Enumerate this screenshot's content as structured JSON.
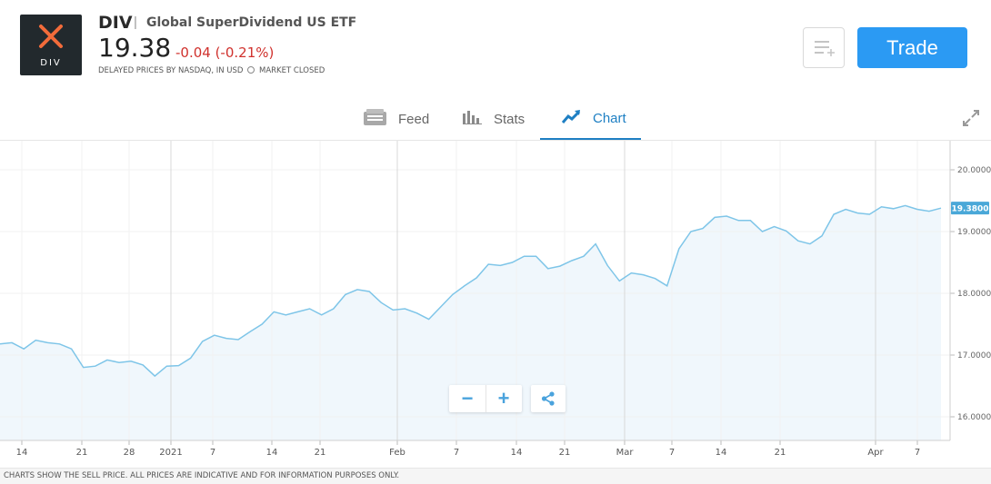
{
  "instrument": {
    "logo_text": "DIV",
    "symbol": "DIV",
    "separator": "|",
    "name": "Global SuperDividend US ETF",
    "price": "19.38",
    "change": "-0.04 (-0.21%)",
    "delayed_note": "DELAYED PRICES BY NASDAQ, IN USD",
    "market_status": "MARKET CLOSED",
    "watchlist_icon": "add-to-list-icon",
    "trade_label": "Trade"
  },
  "tabs": [
    {
      "label": "Feed",
      "icon": "feed-icon",
      "active": false
    },
    {
      "label": "Stats",
      "icon": "stats-icon",
      "active": false
    },
    {
      "label": "Chart",
      "icon": "chart-icon",
      "active": true
    }
  ],
  "colors": {
    "accent": "#2b9af3",
    "active_tab": "#1e7fc3",
    "negative": "#d0312d",
    "line": "#7ec5e8",
    "area_fill": "#eef6fc",
    "price_tag": "#4aa8d8"
  },
  "chart_data": {
    "type": "area",
    "y_ticks": [
      "20.0000",
      "19.0000",
      "18.0000",
      "17.0000",
      "16.0000"
    ],
    "ylim": [
      15.6,
      20.4
    ],
    "x_ticks": [
      "14",
      "21",
      "28",
      "2021",
      "7",
      "14",
      "21",
      "Feb",
      "7",
      "14",
      "21",
      "Mar",
      "7",
      "14",
      "21",
      "Apr",
      "7"
    ],
    "last_price_label": "19.3800",
    "grid": true,
    "series": [
      {
        "values": [
          17.18,
          17.2,
          17.1,
          17.24,
          17.2,
          17.18,
          17.1,
          16.8,
          16.82,
          16.92,
          16.88,
          16.9,
          16.84,
          16.66,
          16.82,
          16.83,
          16.95,
          17.22,
          17.32,
          17.27,
          17.25,
          17.38,
          17.5,
          17.7,
          17.65,
          17.7,
          17.75,
          17.65,
          17.75,
          17.98,
          18.06,
          18.03,
          17.85,
          17.73,
          17.75,
          17.68,
          17.58,
          17.78,
          17.98,
          18.12,
          18.25,
          18.47,
          18.45,
          18.5,
          18.6,
          18.6,
          18.4,
          18.44,
          18.53,
          18.6,
          18.8,
          18.45,
          18.2,
          18.33,
          18.3,
          18.24,
          18.12,
          18.72,
          19.0,
          19.05,
          19.23,
          19.25,
          19.18,
          19.18,
          19.0,
          19.08,
          19.01,
          18.85,
          18.8,
          18.93,
          19.28,
          19.36,
          19.3,
          19.28,
          19.4,
          19.37,
          19.42,
          19.36,
          19.33,
          19.38
        ]
      }
    ]
  },
  "zoom": {
    "minus": "−",
    "plus": "+",
    "share_icon": "share-icon"
  },
  "footer": "CHARTS SHOW THE SELL PRICE. ALL PRICES ARE INDICATIVE AND FOR INFORMATION PURPOSES ONLY."
}
